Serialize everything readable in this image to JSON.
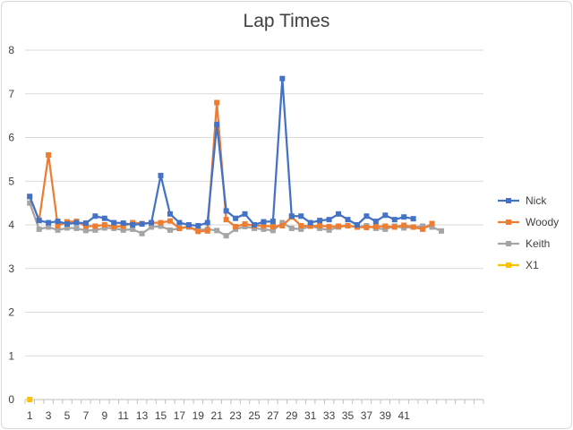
{
  "chart_data": {
    "type": "line",
    "title": "Lap Times",
    "xlabel": "",
    "ylabel": "",
    "ylim": [
      0,
      8
    ],
    "y_ticks": [
      "0",
      "1",
      "2",
      "3",
      "4",
      "5",
      "6",
      "7",
      "8"
    ],
    "x_categories": [
      1,
      2,
      3,
      4,
      5,
      6,
      7,
      8,
      9,
      10,
      11,
      12,
      13,
      14,
      15,
      16,
      17,
      18,
      19,
      20,
      21,
      22,
      23,
      24,
      25,
      26,
      27,
      28,
      29,
      30,
      31,
      32,
      33,
      34,
      35,
      36,
      37,
      38,
      39,
      40,
      41,
      42,
      43,
      44,
      45,
      46,
      47,
      48,
      49
    ],
    "x_tick_labels": [
      "1",
      "3",
      "5",
      "7",
      "9",
      "11",
      "13",
      "15",
      "17",
      "19",
      "21",
      "23",
      "25",
      "27",
      "29",
      "31",
      "33",
      "35",
      "37",
      "39",
      "41"
    ],
    "grid": "horizontal",
    "legend_position": "right",
    "series": [
      {
        "name": "Nick",
        "color": "#4472c4",
        "values": [
          4.65,
          4.1,
          4.05,
          4.08,
          4.02,
          4.05,
          4.04,
          4.2,
          4.15,
          4.05,
          4.04,
          4.0,
          4.02,
          4.05,
          5.13,
          4.25,
          4.05,
          4.0,
          3.98,
          4.05,
          6.3,
          4.32,
          4.15,
          4.25,
          4.0,
          4.07,
          4.08,
          7.35,
          4.2,
          4.2,
          4.05,
          4.1,
          4.12,
          4.25,
          4.12,
          4.0,
          4.2,
          4.08,
          4.22,
          4.12,
          4.18,
          4.14
        ]
      },
      {
        "name": "Woody",
        "color": "#ed7d31",
        "values": [
          4.65,
          4.1,
          5.6,
          3.98,
          4.07,
          4.08,
          3.97,
          3.97,
          4.0,
          3.96,
          3.97,
          4.05,
          4.03,
          4.05,
          4.05,
          4.09,
          3.92,
          3.96,
          3.85,
          3.86,
          6.8,
          4.12,
          3.96,
          4.02,
          3.98,
          3.98,
          3.96,
          3.98,
          4.18,
          3.98,
          3.97,
          3.98,
          3.96,
          3.97,
          3.98,
          3.95,
          3.94,
          3.96,
          3.97,
          3.95,
          3.99,
          3.95,
          3.9,
          4.03
        ]
      },
      {
        "name": "Keith",
        "color": "#a5a5a5",
        "values": [
          4.5,
          3.9,
          3.95,
          3.88,
          3.93,
          3.92,
          3.87,
          3.88,
          3.93,
          3.92,
          3.88,
          3.9,
          3.8,
          3.95,
          3.97,
          3.88,
          3.92,
          3.95,
          3.88,
          3.9,
          3.87,
          3.75,
          3.9,
          3.96,
          3.92,
          3.9,
          3.87,
          4.05,
          3.92,
          3.9,
          3.97,
          3.92,
          3.88,
          3.95,
          3.98,
          3.95,
          3.98,
          3.92,
          3.9,
          3.97,
          3.93,
          3.95,
          3.97,
          3.95,
          3.86
        ]
      },
      {
        "name": "X1",
        "color": "#ffc000",
        "values": [
          0.0
        ]
      }
    ]
  }
}
